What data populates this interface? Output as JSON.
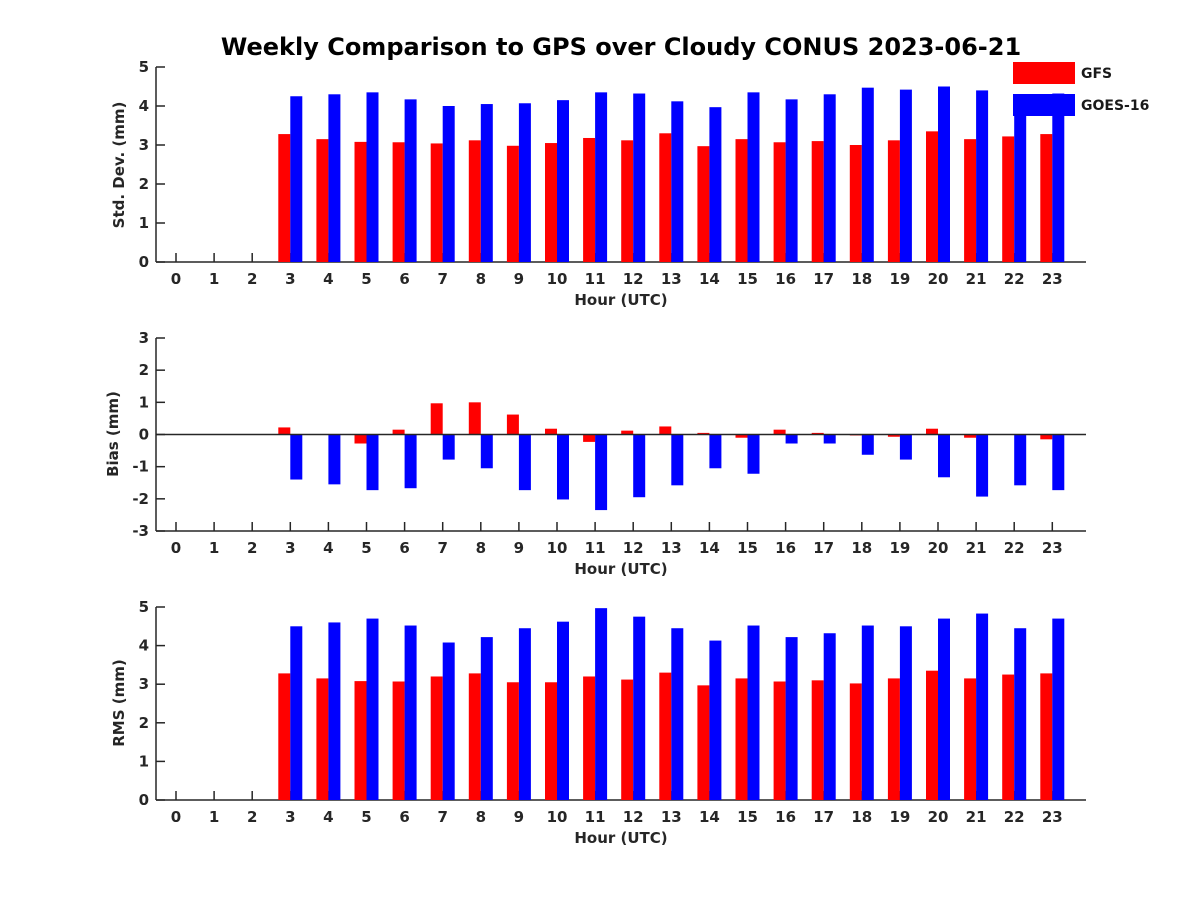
{
  "figure": {
    "title": "Weekly Comparison to GPS over Cloudy CONUS 2023-06-21"
  },
  "legend": {
    "placement": "top-right",
    "items": [
      {
        "label": "GFS",
        "color": "#ff0000"
      },
      {
        "label": "GOES-16",
        "color": "#0000ff"
      }
    ]
  },
  "chart_data": [
    {
      "type": "bar",
      "ylabel": "Std. Dev. (mm)",
      "xlabel": "Hour (UTC)",
      "ylim": [
        0,
        5
      ],
      "yticks": [
        0,
        1,
        2,
        3,
        4,
        5
      ],
      "categories": [
        0,
        1,
        2,
        3,
        4,
        5,
        6,
        7,
        8,
        9,
        10,
        11,
        12,
        13,
        14,
        15,
        16,
        17,
        18,
        19,
        20,
        21,
        22,
        23
      ],
      "series": [
        {
          "name": "GFS",
          "color": "#ff0000",
          "values": [
            null,
            null,
            null,
            3.28,
            3.15,
            3.08,
            3.07,
            3.04,
            3.12,
            2.98,
            3.05,
            3.18,
            3.12,
            3.3,
            2.97,
            3.15,
            3.07,
            3.1,
            3.0,
            3.12,
            3.35,
            3.15,
            3.22,
            3.28
          ]
        },
        {
          "name": "GOES-16",
          "color": "#0000ff",
          "values": [
            null,
            null,
            null,
            4.25,
            4.3,
            4.35,
            4.17,
            4.0,
            4.05,
            4.07,
            4.15,
            4.35,
            4.32,
            4.12,
            3.97,
            4.35,
            4.17,
            4.3,
            4.47,
            4.42,
            4.5,
            4.4,
            4.15,
            4.32
          ]
        }
      ]
    },
    {
      "type": "bar",
      "ylabel": "Bias (mm)",
      "xlabel": "Hour (UTC)",
      "ylim": [
        -3,
        3
      ],
      "yticks": [
        -3,
        -2,
        -1,
        0,
        1,
        2,
        3
      ],
      "categories": [
        0,
        1,
        2,
        3,
        4,
        5,
        6,
        7,
        8,
        9,
        10,
        11,
        12,
        13,
        14,
        15,
        16,
        17,
        18,
        19,
        20,
        21,
        22,
        23
      ],
      "series": [
        {
          "name": "GFS",
          "color": "#ff0000",
          "values": [
            null,
            null,
            null,
            0.22,
            0.0,
            -0.28,
            0.15,
            0.97,
            1.0,
            0.62,
            0.18,
            -0.23,
            0.12,
            0.25,
            0.05,
            -0.1,
            0.15,
            0.05,
            -0.03,
            -0.07,
            0.18,
            -0.1,
            0.0,
            -0.15
          ]
        },
        {
          "name": "GOES-16",
          "color": "#0000ff",
          "values": [
            null,
            null,
            null,
            -1.4,
            -1.55,
            -1.73,
            -1.67,
            -0.78,
            -1.05,
            -1.73,
            -2.02,
            -2.35,
            -1.95,
            -1.58,
            -1.05,
            -1.22,
            -0.28,
            -0.28,
            -0.63,
            -0.78,
            -1.33,
            -1.93,
            -1.58,
            -1.73
          ]
        }
      ]
    },
    {
      "type": "bar",
      "ylabel": "RMS (mm)",
      "xlabel": "Hour (UTC)",
      "ylim": [
        0,
        5
      ],
      "yticks": [
        0,
        1,
        2,
        3,
        4,
        5
      ],
      "categories": [
        0,
        1,
        2,
        3,
        4,
        5,
        6,
        7,
        8,
        9,
        10,
        11,
        12,
        13,
        14,
        15,
        16,
        17,
        18,
        19,
        20,
        21,
        22,
        23
      ],
      "series": [
        {
          "name": "GFS",
          "color": "#ff0000",
          "values": [
            null,
            null,
            null,
            3.28,
            3.15,
            3.08,
            3.07,
            3.2,
            3.28,
            3.05,
            3.05,
            3.2,
            3.12,
            3.3,
            2.97,
            3.15,
            3.07,
            3.1,
            3.02,
            3.15,
            3.35,
            3.15,
            3.25,
            3.28
          ]
        },
        {
          "name": "GOES-16",
          "color": "#0000ff",
          "values": [
            null,
            null,
            null,
            4.5,
            4.6,
            4.7,
            4.52,
            4.08,
            4.22,
            4.45,
            4.62,
            4.97,
            4.75,
            4.45,
            4.13,
            4.52,
            4.22,
            4.32,
            4.52,
            4.5,
            4.7,
            4.83,
            4.45,
            4.7
          ]
        }
      ]
    }
  ]
}
